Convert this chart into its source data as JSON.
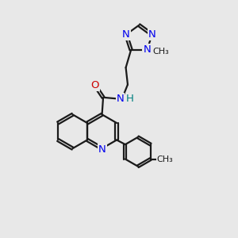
{
  "bg_color": "#e8e8e8",
  "bond_color": "#1a1a1a",
  "N_color": "#0000ee",
  "O_color": "#cc0000",
  "H_color": "#008080",
  "line_width": 1.6,
  "font_size": 9.5,
  "small_font_size": 8.0,
  "xlim": [
    0,
    10
  ],
  "ylim": [
    0,
    10
  ]
}
